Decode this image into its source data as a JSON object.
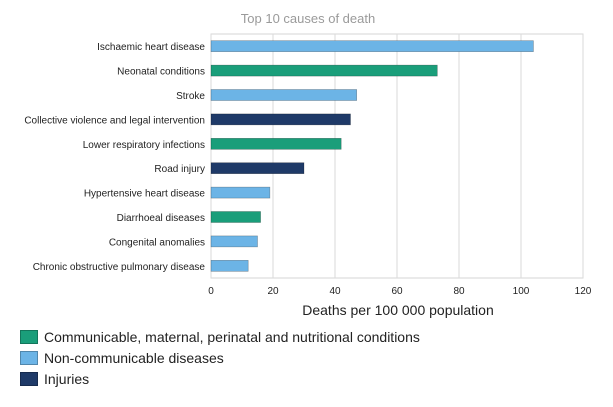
{
  "chart_data": {
    "type": "bar",
    "orientation": "horizontal",
    "title": "Top 10 causes of death",
    "xlabel": "Deaths per 100 000 population",
    "ylabel": "",
    "xlim": [
      0,
      120
    ],
    "xticks": [
      0,
      20,
      40,
      60,
      80,
      100,
      120
    ],
    "grid": true,
    "legend_position": "bottom-left",
    "categories": [
      "Ischaemic heart disease",
      "Neonatal conditions",
      "Stroke",
      "Collective violence and legal intervention",
      "Lower respiratory infections",
      "Road injury",
      "Hypertensive heart disease",
      "Diarrhoeal diseases",
      "Congenital anomalies",
      "Chronic obstructive pulmonary disease"
    ],
    "values": [
      104,
      73,
      47,
      45,
      42,
      30,
      19,
      16,
      15,
      12
    ],
    "groups": [
      "Non-communicable diseases",
      "Communicable, maternal, perinatal and nutritional conditions",
      "Non-communicable diseases",
      "Injuries",
      "Communicable, maternal, perinatal and nutritional conditions",
      "Injuries",
      "Non-communicable diseases",
      "Communicable, maternal, perinatal and nutritional conditions",
      "Non-communicable diseases",
      "Non-communicable diseases"
    ],
    "legend": [
      {
        "name": "Communicable, maternal, perinatal and nutritional conditions",
        "color": "#1a9e7a"
      },
      {
        "name": "Non-communicable diseases",
        "color": "#6cb4e6"
      },
      {
        "name": "Injuries",
        "color": "#1f3a68"
      }
    ]
  }
}
